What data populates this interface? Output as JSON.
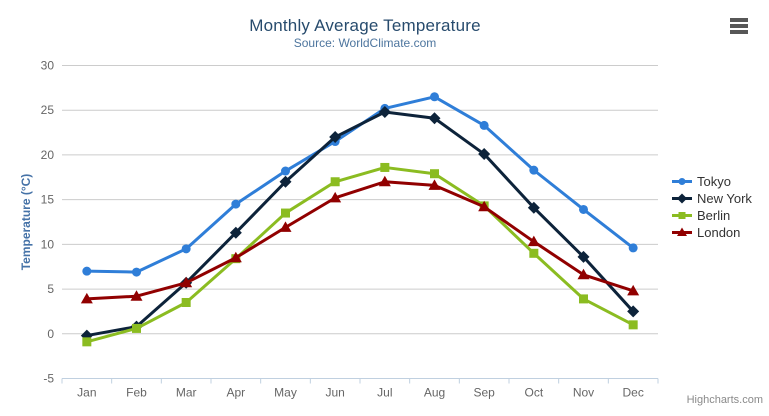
{
  "chart_data": {
    "type": "line",
    "title": "Monthly Average Temperature",
    "subtitle": "Source: WorldClimate.com",
    "categories": [
      "Jan",
      "Feb",
      "Mar",
      "Apr",
      "May",
      "Jun",
      "Jul",
      "Aug",
      "Sep",
      "Oct",
      "Nov",
      "Dec"
    ],
    "xlabel": "",
    "ylabel": "Temperature (°C)",
    "ylim": [
      -5,
      30
    ],
    "ytick_step": 5,
    "grid": true,
    "legend_position": "right",
    "series": [
      {
        "name": "Tokyo",
        "color": "#2f7ed8",
        "marker": "circle",
        "values": [
          7.0,
          6.9,
          9.5,
          14.5,
          18.2,
          21.5,
          25.2,
          26.5,
          23.3,
          18.3,
          13.9,
          9.6
        ]
      },
      {
        "name": "New York",
        "color": "#0d233a",
        "marker": "diamond",
        "values": [
          -0.2,
          0.8,
          5.7,
          11.3,
          17.0,
          22.0,
          24.8,
          24.1,
          20.1,
          14.1,
          8.6,
          2.5
        ]
      },
      {
        "name": "Berlin",
        "color": "#8bbc21",
        "marker": "square",
        "values": [
          -0.9,
          0.6,
          3.5,
          8.4,
          13.5,
          17.0,
          18.6,
          17.9,
          14.3,
          9.0,
          3.9,
          1.0
        ]
      },
      {
        "name": "London",
        "color": "#910000",
        "marker": "triangle",
        "values": [
          3.9,
          4.2,
          5.7,
          8.5,
          11.9,
          15.2,
          17.0,
          16.6,
          14.2,
          10.3,
          6.6,
          4.8
        ]
      }
    ]
  },
  "footer": {
    "credit": "Highcharts.com"
  },
  "palette": {
    "title_color": "#274b6d",
    "subtitle_color": "#4d759e",
    "axis_title_color": "#4572a7",
    "tick_label_color": "#666666",
    "grid_color": "#cccccc",
    "axis_line_color": "#c0d0e0",
    "legend_label_color": "#333333",
    "burger_color": "#575757",
    "background": "#ffffff"
  }
}
